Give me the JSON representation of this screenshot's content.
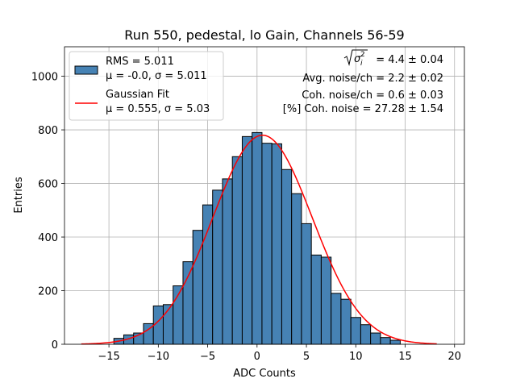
{
  "chart_data": {
    "type": "bar",
    "title": "Run 550, pedestal, lo Gain, Channels 56-59",
    "xlabel": "ADC Counts",
    "ylabel": "Entries",
    "xlim": [
      -19.5,
      21
    ],
    "ylim": [
      0,
      1110
    ],
    "grid": true,
    "xticks": [
      -15,
      -10,
      -5,
      0,
      5,
      10,
      15,
      20
    ],
    "yticks": [
      0,
      200,
      400,
      600,
      800,
      1000
    ],
    "histogram": {
      "bin_width": 1,
      "bin_edges_start": -14.5,
      "values": [
        22,
        35,
        42,
        77,
        143,
        148,
        218,
        308,
        425,
        520,
        575,
        617,
        700,
        775,
        790,
        750,
        748,
        652,
        562,
        450,
        333,
        325,
        190,
        168,
        100,
        73,
        42,
        25,
        15
      ],
      "fill_color": "#4682b4",
      "edge_color": "#000000"
    },
    "fit": {
      "mu": 0.555,
      "sigma": 5.03,
      "amplitude": 780,
      "x_range": [
        -17.8,
        18.2
      ],
      "color": "#ff0000"
    },
    "legend": {
      "position": "top-left",
      "entries": [
        {
          "line1": "RMS = 5.011",
          "line2": "μ = -0.0, σ = 5.011",
          "marker": "patch"
        },
        {
          "line1": "Gaussian Fit",
          "line2": "μ = 0.555, σ = 5.03",
          "marker": "line"
        }
      ]
    },
    "annotations": {
      "position": "top-right",
      "lines": [
        "√σᵢ² = 4.4 ± 0.04",
        "Avg. noise/ch = 2.2 ± 0.02",
        "Coh. noise/ch = 0.6 ± 0.03",
        "[%] Coh. noise = 27.28 ± 1.54"
      ],
      "first_line_value": "= 4.4 ± 0.04"
    }
  }
}
